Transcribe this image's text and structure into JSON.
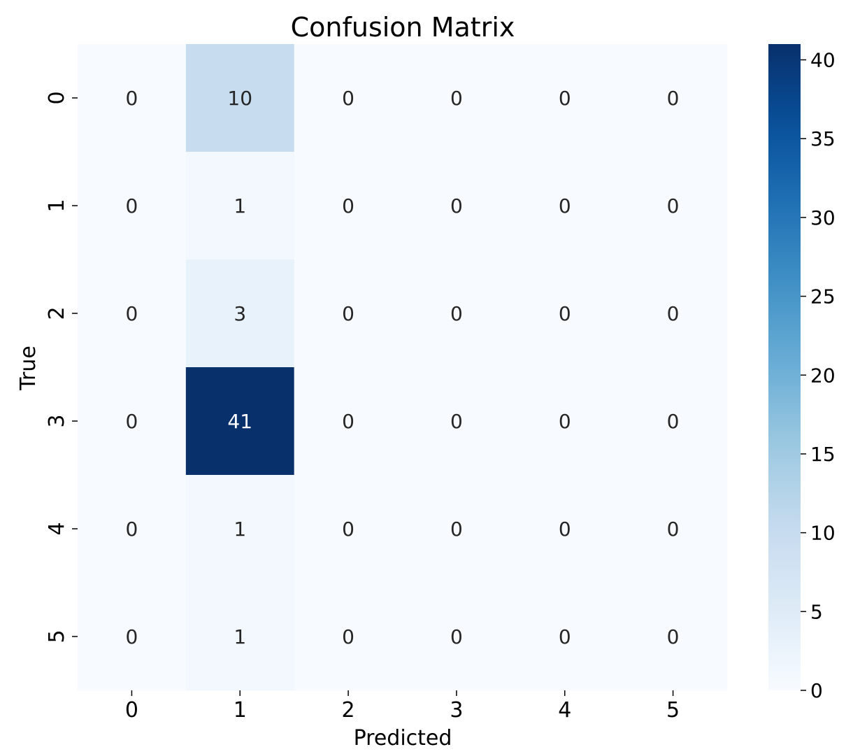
{
  "chart_data": {
    "type": "heatmap",
    "title": "Confusion Matrix",
    "xlabel": "Predicted",
    "ylabel": "True",
    "x_categories": [
      "0",
      "1",
      "2",
      "3",
      "4",
      "5"
    ],
    "y_categories": [
      "0",
      "1",
      "2",
      "3",
      "4",
      "5"
    ],
    "values": [
      [
        0,
        10,
        0,
        0,
        0,
        0
      ],
      [
        0,
        1,
        0,
        0,
        0,
        0
      ],
      [
        0,
        3,
        0,
        0,
        0,
        0
      ],
      [
        0,
        41,
        0,
        0,
        0,
        0
      ],
      [
        0,
        1,
        0,
        0,
        0,
        0
      ],
      [
        0,
        1,
        0,
        0,
        0,
        0
      ]
    ],
    "colormap": "Blues",
    "color_range": [
      0,
      41
    ],
    "colorbar_ticks": [
      0,
      5,
      10,
      15,
      20,
      25,
      30,
      35,
      40
    ],
    "annotations": true
  }
}
